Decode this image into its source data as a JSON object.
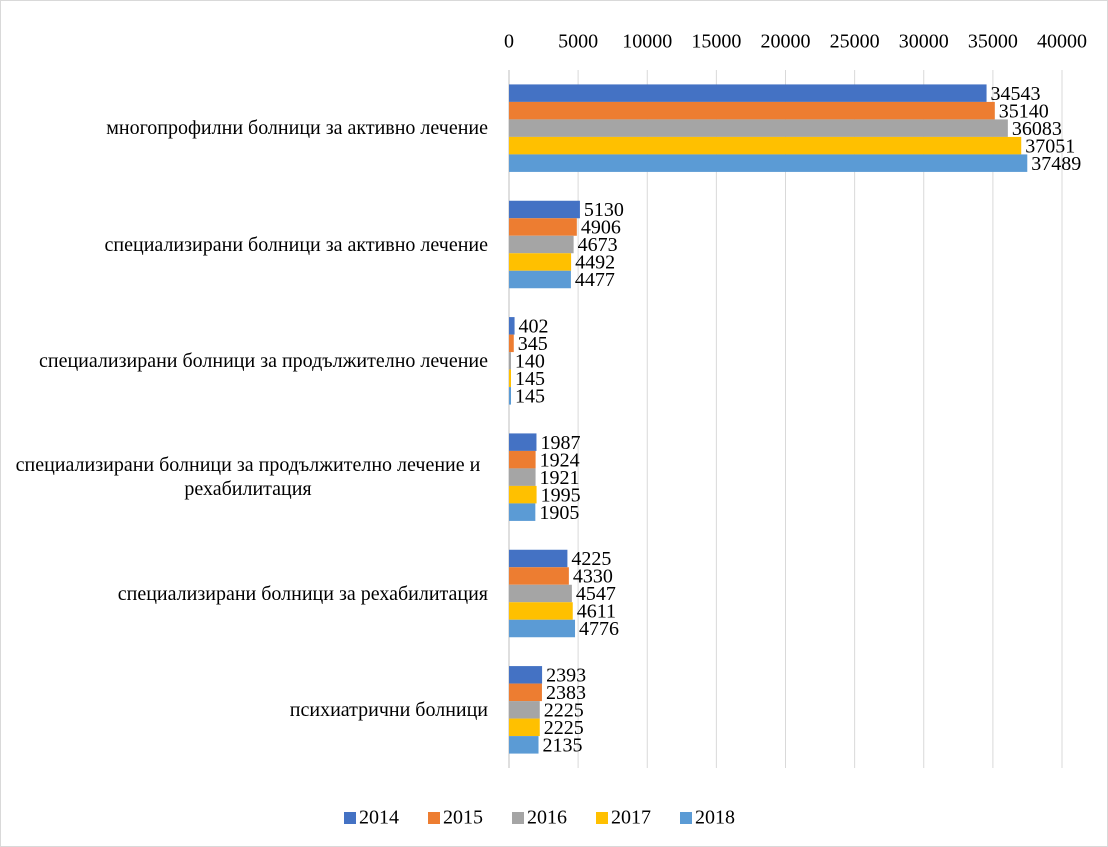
{
  "chart_data": {
    "type": "hbar",
    "categories": [
      "многопрофилни болници за активно лечение",
      "специализирани болници за активно лечение",
      "специализирани болници за продължително лечение",
      "специализирани болници за продължително лечение и рехабилитация",
      "специализирани болници за рехабилитация",
      "психиатрични болници"
    ],
    "series": [
      {
        "name": "2014",
        "color": "#4472c4",
        "values": [
          34543,
          5130,
          402,
          1987,
          4225,
          2393
        ]
      },
      {
        "name": "2015",
        "color": "#ed7d31",
        "values": [
          35140,
          4906,
          345,
          1924,
          4330,
          2383
        ]
      },
      {
        "name": "2016",
        "color": "#a5a5a5",
        "values": [
          36083,
          4673,
          140,
          1921,
          4547,
          2225
        ]
      },
      {
        "name": "2017",
        "color": "#ffc000",
        "values": [
          37051,
          4492,
          145,
          1995,
          4611,
          2225
        ]
      },
      {
        "name": "2018",
        "color": "#5b9bd5",
        "values": [
          37489,
          4477,
          145,
          1905,
          4776,
          2135
        ]
      }
    ],
    "xlim": [
      0,
      40000
    ],
    "xticks": [
      0,
      5000,
      10000,
      15000,
      20000,
      25000,
      30000,
      35000,
      40000
    ],
    "grid": true,
    "legend": "bottom"
  }
}
